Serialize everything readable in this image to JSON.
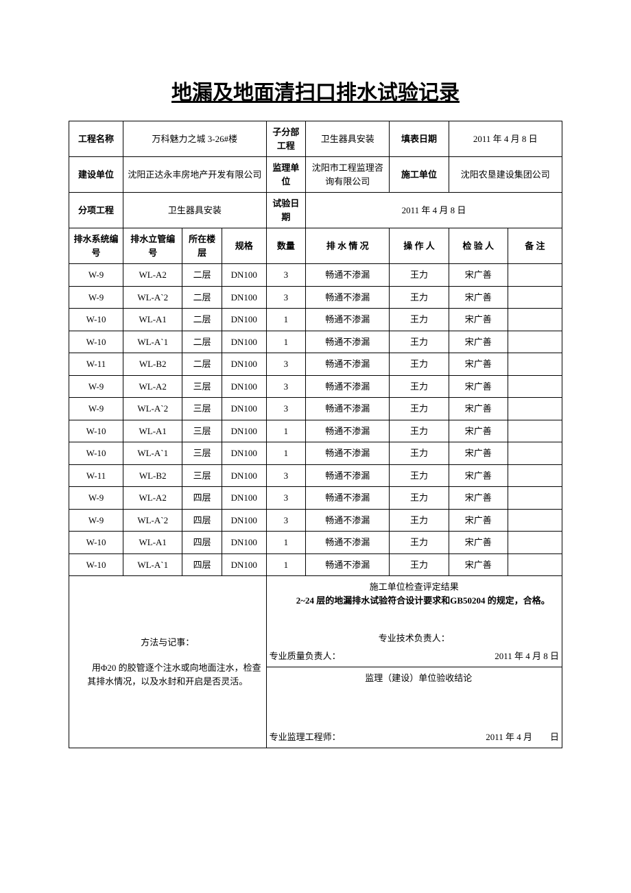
{
  "title": "地漏及地面清扫口排水试验记录",
  "header": {
    "labels": {
      "projectName": "工程名称",
      "subDivision": "子分部工程",
      "fillDate": "填表日期",
      "constructionUnit": "建设单位",
      "supervisionUnit": "监理单位",
      "contractor": "施工单位",
      "subItem": "分项工程",
      "testDate": "试验日期"
    },
    "values": {
      "projectName": "万科魅力之城 3-26#楼",
      "subDivision": "卫生器具安装",
      "fillDate": "2011 年 4 月 8 日",
      "constructionUnit": "沈阳正达永丰房地产开发有限公司",
      "supervisionUnit": "沈阳市工程监理咨询有限公司",
      "contractor": "沈阳农垦建设集团公司",
      "subItem": "卫生器具安装",
      "testDate": "2011 年 4 月 8 日"
    }
  },
  "columns": {
    "sysNo": "排水系统编号",
    "riserNo": "排水立管编号",
    "floor": "所在楼层",
    "spec": "规格",
    "qty": "数量",
    "status": "排 水 情 况",
    "operator": "操 作 人",
    "inspector": "检 验 人",
    "remark": "备 注"
  },
  "rows": [
    {
      "sysNo": "W-9",
      "riserNo": "WL-A2",
      "floor": "二层",
      "spec": "DN100",
      "qty": "3",
      "status": "畅通不渗漏",
      "operator": "王力",
      "inspector": "宋广善",
      "remark": ""
    },
    {
      "sysNo": "W-9",
      "riserNo": "WL-A`2",
      "floor": "二层",
      "spec": "DN100",
      "qty": "3",
      "status": "畅通不渗漏",
      "operator": "王力",
      "inspector": "宋广善",
      "remark": ""
    },
    {
      "sysNo": "W-10",
      "riserNo": "WL-A1",
      "floor": "二层",
      "spec": "DN100",
      "qty": "1",
      "status": "畅通不渗漏",
      "operator": "王力",
      "inspector": "宋广善",
      "remark": ""
    },
    {
      "sysNo": "W-10",
      "riserNo": "WL-A`1",
      "floor": "二层",
      "spec": "DN100",
      "qty": "1",
      "status": "畅通不渗漏",
      "operator": "王力",
      "inspector": "宋广善",
      "remark": ""
    },
    {
      "sysNo": "W-11",
      "riserNo": "WL-B2",
      "floor": "二层",
      "spec": "DN100",
      "qty": "3",
      "status": "畅通不渗漏",
      "operator": "王力",
      "inspector": "宋广善",
      "remark": ""
    },
    {
      "sysNo": "W-9",
      "riserNo": "WL-A2",
      "floor": "三层",
      "spec": "DN100",
      "qty": "3",
      "status": "畅通不渗漏",
      "operator": "王力",
      "inspector": "宋广善",
      "remark": ""
    },
    {
      "sysNo": "W-9",
      "riserNo": "WL-A`2",
      "floor": "三层",
      "spec": "DN100",
      "qty": "3",
      "status": "畅通不渗漏",
      "operator": "王力",
      "inspector": "宋广善",
      "remark": ""
    },
    {
      "sysNo": "W-10",
      "riserNo": "WL-A1",
      "floor": "三层",
      "spec": "DN100",
      "qty": "1",
      "status": "畅通不渗漏",
      "operator": "王力",
      "inspector": "宋广善",
      "remark": ""
    },
    {
      "sysNo": "W-10",
      "riserNo": "WL-A`1",
      "floor": "三层",
      "spec": "DN100",
      "qty": "1",
      "status": "畅通不渗漏",
      "operator": "王力",
      "inspector": "宋广善",
      "remark": ""
    },
    {
      "sysNo": "W-11",
      "riserNo": "WL-B2",
      "floor": "三层",
      "spec": "DN100",
      "qty": "3",
      "status": "畅通不渗漏",
      "operator": "王力",
      "inspector": "宋广善",
      "remark": ""
    },
    {
      "sysNo": "W-9",
      "riserNo": "WL-A2",
      "floor": "四层",
      "spec": "DN100",
      "qty": "3",
      "status": "畅通不渗漏",
      "operator": "王力",
      "inspector": "宋广善",
      "remark": ""
    },
    {
      "sysNo": "W-9",
      "riserNo": "WL-A`2",
      "floor": "四层",
      "spec": "DN100",
      "qty": "3",
      "status": "畅通不渗漏",
      "operator": "王力",
      "inspector": "宋广善",
      "remark": ""
    },
    {
      "sysNo": "W-10",
      "riserNo": "WL-A1",
      "floor": "四层",
      "spec": "DN100",
      "qty": "1",
      "status": "畅通不渗漏",
      "operator": "王力",
      "inspector": "宋广善",
      "remark": ""
    },
    {
      "sysNo": "W-10",
      "riserNo": "WL-A`1",
      "floor": "四层",
      "spec": "DN100",
      "qty": "1",
      "status": "畅通不渗漏",
      "operator": "王力",
      "inspector": "宋广善",
      "remark": ""
    }
  ],
  "footer": {
    "methodLabel": "方法与记事：",
    "methodBody": "　　用Φ20 的胶管逐个注水或向地面注水，检查其排水情况，以及水封和开启是否灵活。",
    "resultLabel": "施工单位检查评定结果",
    "resultBody": "2~24 层的地漏排水试验符合设计要求和GB50204 的规定，合格。",
    "techLead": "专业技术负责人：",
    "qualityLead": "专业质量负责人：",
    "resultDate": "2011 年 4 月  8  日",
    "supervisionLabel": "监理（建设）单位验收结论",
    "supervisor": "专业监理工程师：",
    "supervisionDate": "2011 年 4 月　　日"
  }
}
